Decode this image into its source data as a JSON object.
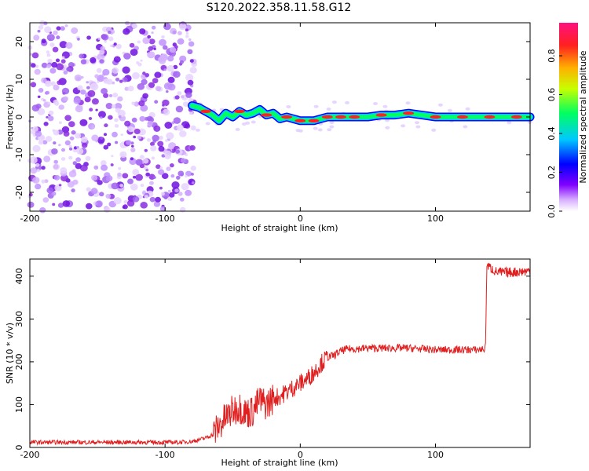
{
  "title": "S120.2022.358.11.58.G12",
  "colors": {
    "snr_line": "#e02020",
    "spectral_track": "#ff2020",
    "noise": "#8a2be2"
  },
  "chart_data": [
    {
      "type": "heatmap",
      "title": "S120.2022.358.11.58.G12",
      "xlabel": "Height of straight line (km)",
      "ylabel": "Frequency (Hz)",
      "xlim": [
        -200,
        170
      ],
      "ylim": [
        -25,
        25
      ],
      "xticks": [
        -200,
        -100,
        0,
        100
      ],
      "xtick_labels": [
        "-200",
        "-100",
        "0",
        "100"
      ],
      "yticks": [
        20,
        10,
        0,
        -10,
        -20
      ],
      "ytick_labels": [
        "20",
        "10",
        "0",
        "-10",
        "-20"
      ],
      "noise_region_x": [
        -200,
        -78
      ],
      "track": {
        "x": [
          -80,
          -75,
          -70,
          -65,
          -60,
          -55,
          -50,
          -45,
          -40,
          -35,
          -30,
          -25,
          -20,
          -15,
          -10,
          -5,
          0,
          10,
          20,
          30,
          40,
          50,
          60,
          70,
          80,
          90,
          100,
          120,
          140,
          160,
          170
        ],
        "y": [
          3,
          2.5,
          1.5,
          0.5,
          -1,
          1,
          0,
          1.5,
          0.5,
          1,
          2,
          0.5,
          1,
          -0.5,
          0,
          -0.5,
          -1,
          -1,
          0,
          0,
          0,
          0,
          0.5,
          0.5,
          1,
          0.5,
          0,
          0,
          0,
          0,
          0
        ]
      },
      "colorbar": {
        "label": "Normalized spectral amplitude",
        "range": [
          0,
          0.97
        ],
        "ticks": [
          0.0,
          0.2,
          0.4,
          0.6,
          0.8
        ],
        "tick_labels": [
          "0.0",
          "0.2",
          "0.4",
          "0.6",
          "0.8"
        ]
      }
    },
    {
      "type": "line",
      "xlabel": "Height of straight line (km)",
      "ylabel": "SNR (10 * v/v)",
      "xlim": [
        -200,
        170
      ],
      "ylim": [
        0,
        440
      ],
      "xticks": [
        -200,
        -100,
        0,
        100
      ],
      "xtick_labels": [
        "-200",
        "-100",
        "0",
        "100"
      ],
      "yticks": [
        0,
        100,
        200,
        300,
        400
      ],
      "ytick_labels": [
        "0",
        "100",
        "200",
        "300",
        "400"
      ],
      "x": [
        -200,
        -180,
        -160,
        -140,
        -120,
        -100,
        -90,
        -80,
        -75,
        -70,
        -65,
        -60,
        -55,
        -50,
        -45,
        -40,
        -35,
        -30,
        -25,
        -20,
        -15,
        -10,
        -5,
        0,
        5,
        10,
        15,
        20,
        25,
        30,
        35,
        40,
        50,
        60,
        70,
        80,
        90,
        100,
        110,
        120,
        130,
        137,
        138,
        145,
        150,
        160,
        170
      ],
      "y": [
        12,
        12,
        12,
        12,
        12,
        12,
        12,
        14,
        18,
        22,
        30,
        50,
        70,
        85,
        95,
        80,
        85,
        110,
        100,
        115,
        120,
        130,
        140,
        150,
        160,
        175,
        195,
        210,
        215,
        225,
        230,
        230,
        232,
        232,
        232,
        232,
        230,
        228,
        228,
        228,
        228,
        230,
        425,
        410,
        408,
        410,
        412
      ]
    }
  ]
}
